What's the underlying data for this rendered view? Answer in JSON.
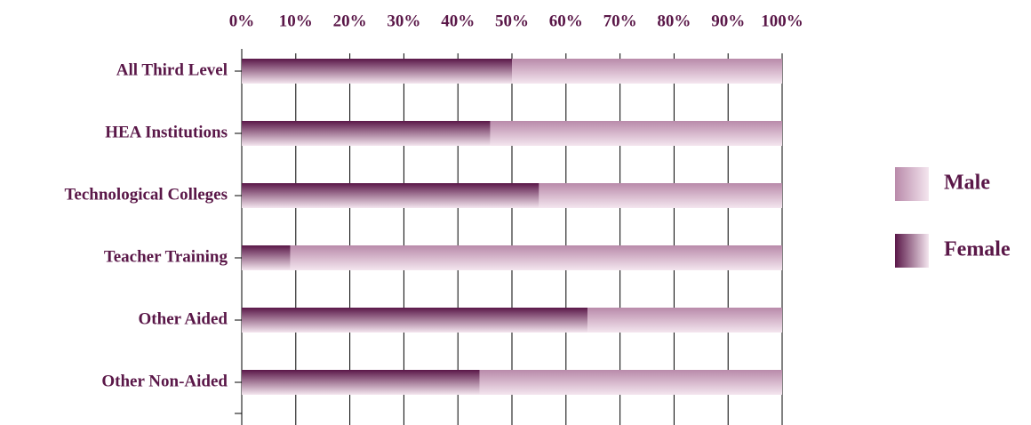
{
  "chart_data": {
    "type": "stacked-bar-horizontal",
    "categories": [
      "All Third Level",
      "HEA Institutions",
      "Technological Colleges",
      "Teacher Training",
      "Other Aided",
      "Other Non-Aided"
    ],
    "series": [
      {
        "name": "Female",
        "color": "#5a1748",
        "values": [
          50,
          46,
          55,
          9,
          64,
          44
        ]
      },
      {
        "name": "Male",
        "color": "#b98aaa",
        "values": [
          50,
          54,
          45,
          91,
          36,
          56
        ]
      }
    ],
    "xlim": [
      0,
      100
    ],
    "xticks": [
      {
        "value": 0,
        "label": "0%"
      },
      {
        "value": 10,
        "label": "10%"
      },
      {
        "value": 20,
        "label": "20%"
      },
      {
        "value": 30,
        "label": "30%"
      },
      {
        "value": 40,
        "label": "40%"
      },
      {
        "value": 50,
        "label": "50%"
      },
      {
        "value": 60,
        "label": "60%"
      },
      {
        "value": 70,
        "label": "70%"
      },
      {
        "value": 80,
        "label": "80%"
      },
      {
        "value": 90,
        "label": "90%"
      },
      {
        "value": 100,
        "label": "100%"
      }
    ],
    "grid": true,
    "legend": "right"
  }
}
